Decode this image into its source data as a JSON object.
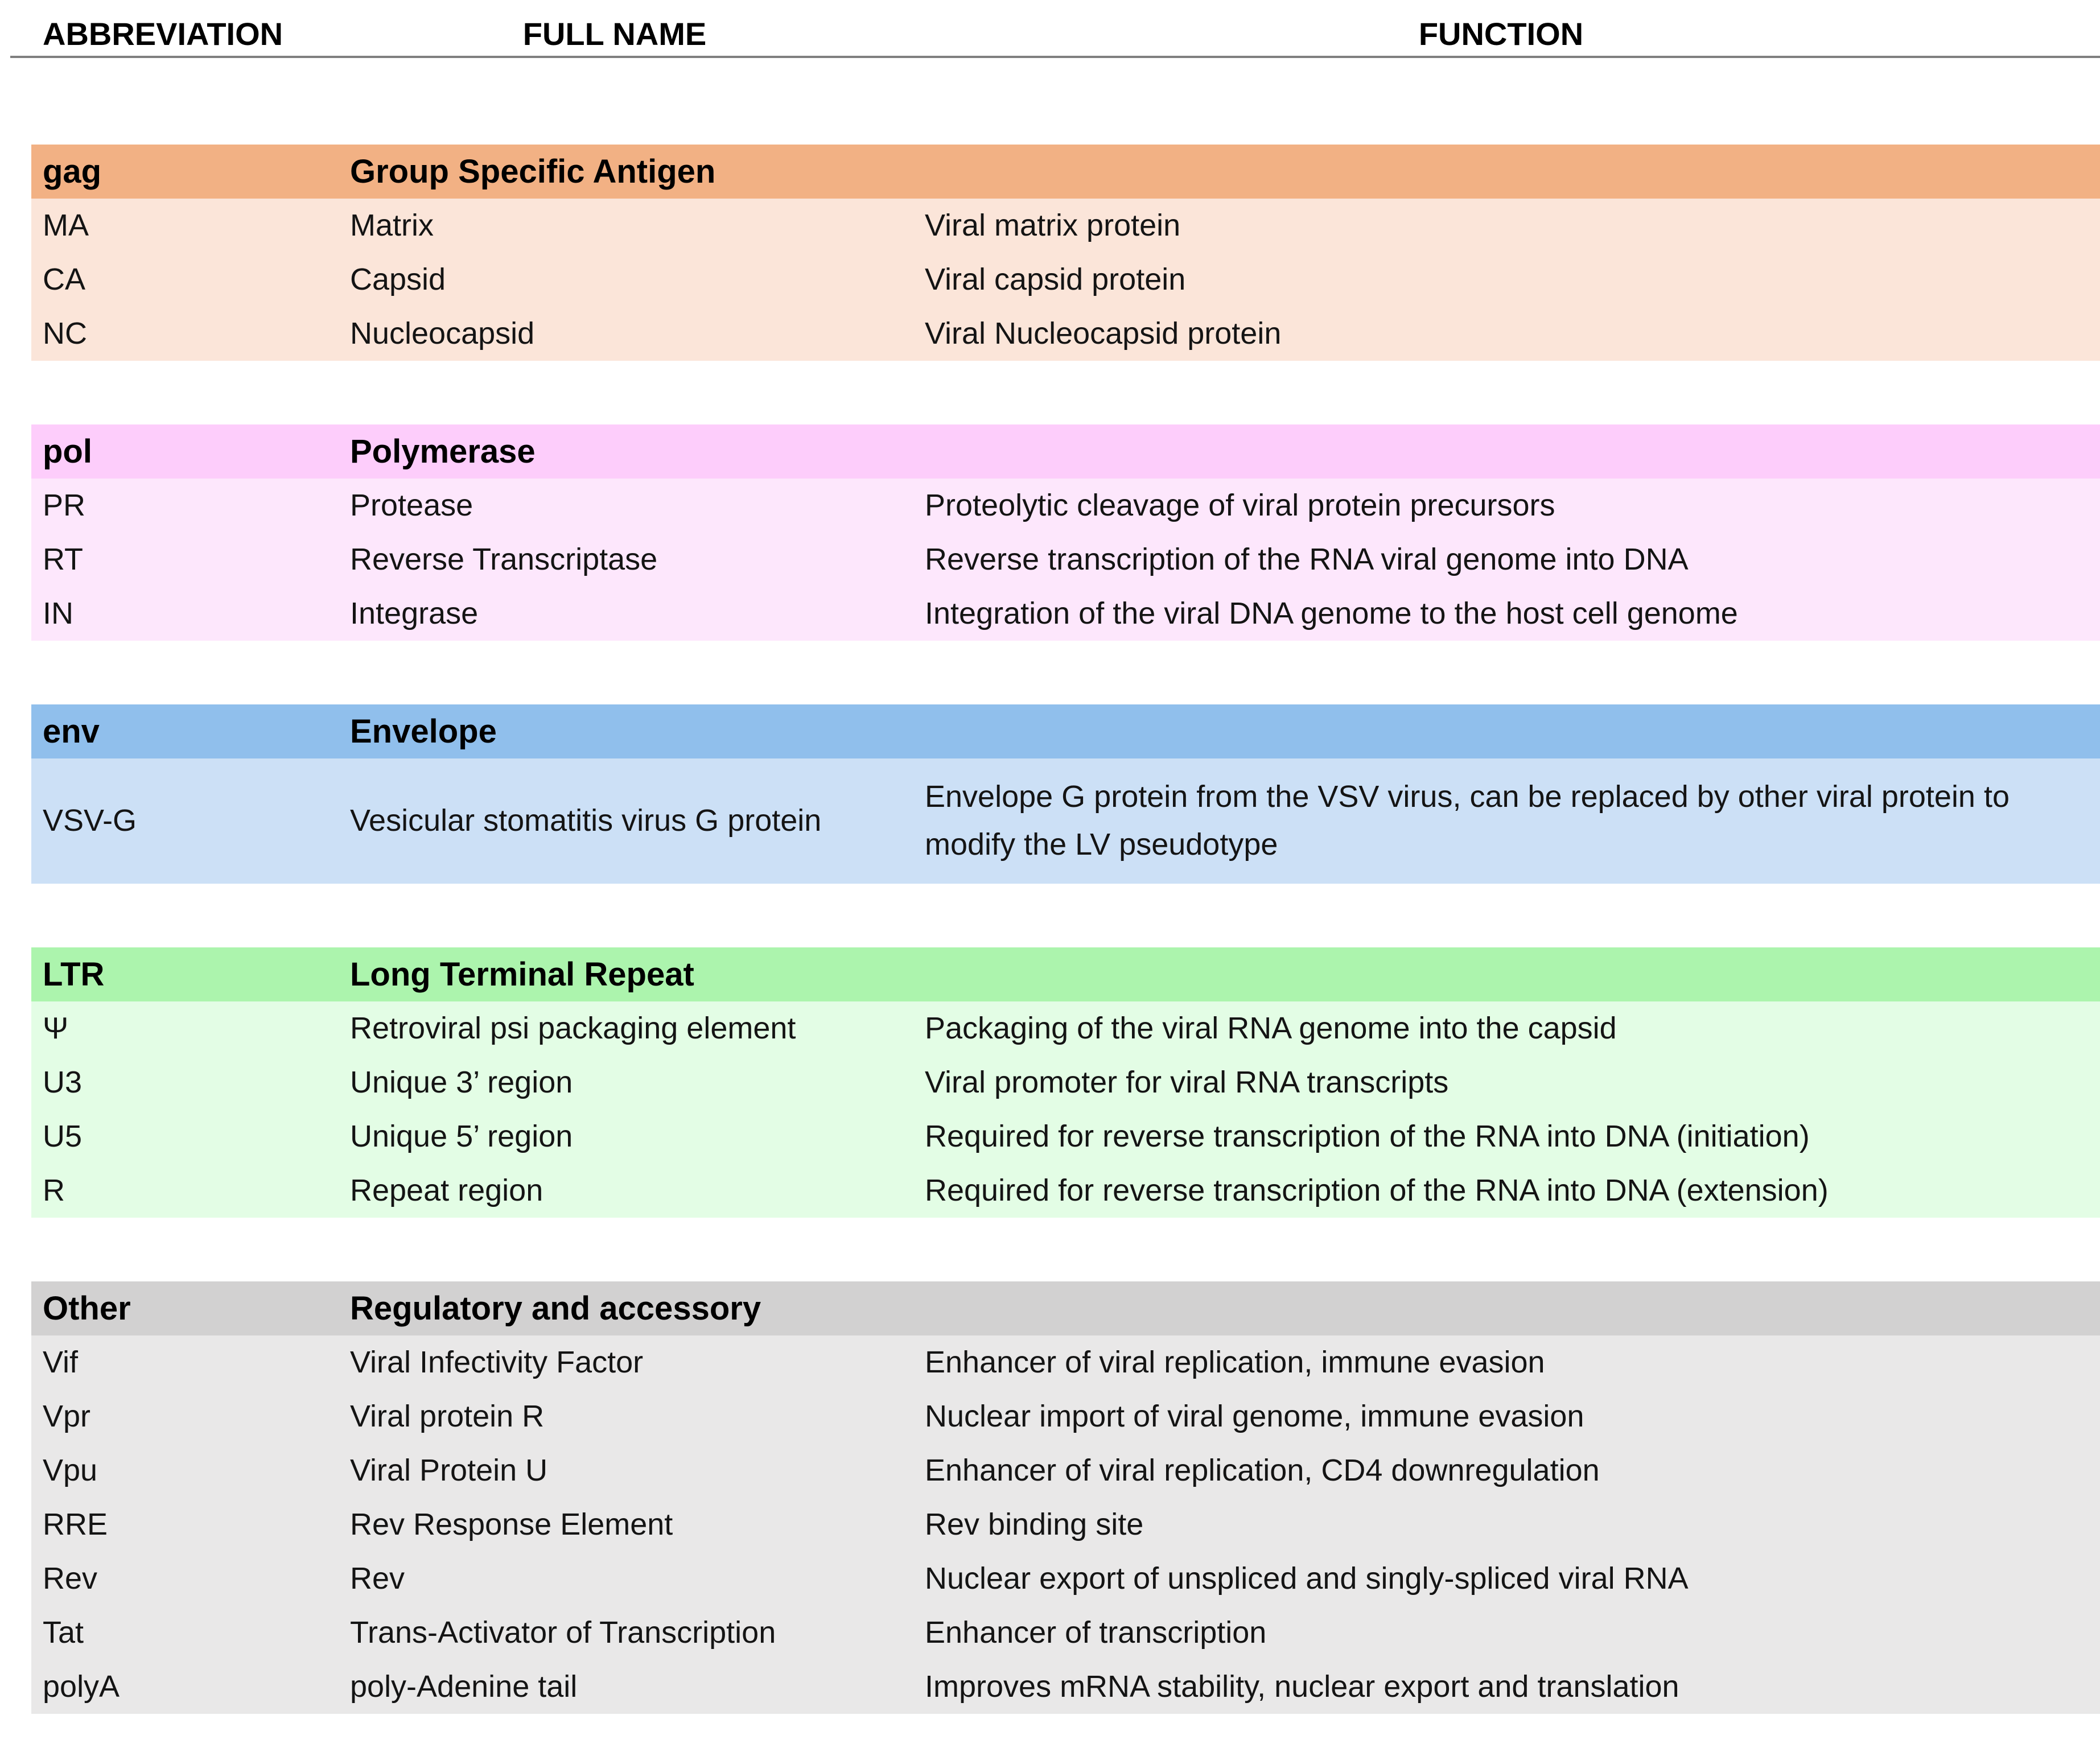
{
  "header": {
    "abbreviation": "ABBREVIATION",
    "full_name": "FULL NAME",
    "function": "FUNCTION"
  },
  "sections": [
    {
      "abbr": "gag",
      "title": "Group Specific Antigen",
      "colors": {
        "header": "#F2B184",
        "body": "#FBE5D9"
      },
      "rows": [
        {
          "abbr": "MA",
          "full_name": "Matrix",
          "function": "Viral matrix protein"
        },
        {
          "abbr": "CA",
          "full_name": "Capsid",
          "function": "Viral capsid protein"
        },
        {
          "abbr": "NC",
          "full_name": "Nucleocapsid",
          "function": "Viral Nucleocapsid protein"
        }
      ]
    },
    {
      "abbr": "pol",
      "title": "Polymerase",
      "colors": {
        "header": "#FDCDFB",
        "body": "#FDE7FC"
      },
      "rows": [
        {
          "abbr": "PR",
          "full_name": "Protease",
          "function": "Proteolytic cleavage of viral protein precursors"
        },
        {
          "abbr": "RT",
          "full_name": "Reverse Transcriptase",
          "function": "Reverse transcription of the RNA viral genome into DNA"
        },
        {
          "abbr": "IN",
          "full_name": "Integrase",
          "function": "Integration of the viral DNA genome to the host cell genome"
        }
      ]
    },
    {
      "abbr": "env",
      "title": "Envelope",
      "colors": {
        "header": "#90BFEC",
        "body": "#CCE0F6"
      },
      "rows": [
        {
          "abbr": "VSV-G",
          "full_name": "Vesicular stomatitis virus G protein",
          "function": "Envelope G protein from the VSV virus, can be replaced by other viral protein to modify the LV pseudotype"
        }
      ]
    },
    {
      "abbr": "LTR",
      "title": "Long Terminal Repeat",
      "colors": {
        "header": "#ACF4AD",
        "body": "#E3FDE5"
      },
      "rows": [
        {
          "abbr": "Ψ",
          "full_name": "Retroviral psi packaging element",
          "function": "Packaging of the viral RNA genome into the capsid"
        },
        {
          "abbr": "U3",
          "full_name": "Unique 3’ region",
          "function": "Viral promoter for viral RNA transcripts"
        },
        {
          "abbr": "U5",
          "full_name": "Unique 5’ region",
          "function": "Required for reverse transcription of the RNA into DNA (initiation)"
        },
        {
          "abbr": "R",
          "full_name": "Repeat region",
          "function": "Required for reverse transcription of the RNA into DNA (extension)"
        }
      ]
    },
    {
      "abbr": "Other",
      "title": "Regulatory and accessory",
      "colors": {
        "header": "#D2D1D1",
        "body": "#E9E8E8"
      },
      "rows": [
        {
          "abbr": "Vif",
          "full_name": "Viral Infectivity Factor",
          "function": "Enhancer of viral replication, immune evasion"
        },
        {
          "abbr": "Vpr",
          "full_name": "Viral protein R",
          "function": "Nuclear import of viral genome, immune evasion"
        },
        {
          "abbr": "Vpu",
          "full_name": "Viral Protein U",
          "function": "Enhancer of viral replication, CD4 downregulation"
        },
        {
          "abbr": "RRE",
          "full_name": "Rev Response Element",
          "function": "Rev binding site"
        },
        {
          "abbr": "Rev",
          "full_name": "Rev",
          "function": "Nuclear export of unspliced and singly-spliced viral RNA"
        },
        {
          "abbr": "Tat",
          "full_name": "Trans-Activator of Transcription",
          "function": "Enhancer of transcription"
        },
        {
          "abbr": "polyA",
          "full_name": "poly-Adenine tail",
          "function": "Improves mRNA stability, nuclear export and translation"
        }
      ]
    }
  ]
}
